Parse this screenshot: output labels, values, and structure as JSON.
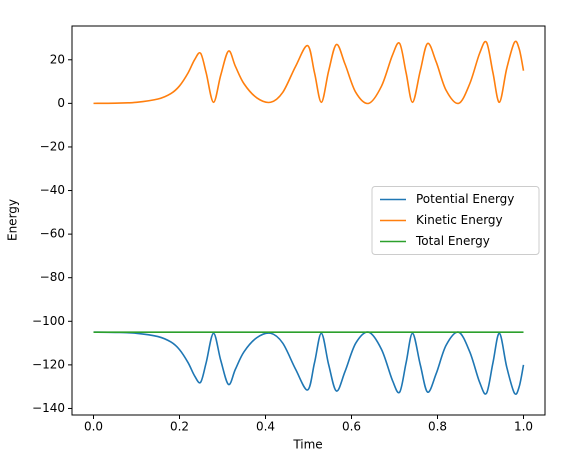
{
  "chart_data": {
    "type": "line",
    "xlabel": "Time",
    "ylabel": "Energy",
    "xlim": [
      -0.05,
      1.05
    ],
    "ylim": [
      -143,
      35.5
    ],
    "xticks": [
      {
        "value": 0,
        "label": "0.0"
      },
      0.2,
      0.4,
      0.6,
      0.8,
      {
        "value": 1,
        "label": "1.0"
      }
    ],
    "yticks": [
      {
        "value": -140,
        "label": "−140"
      },
      {
        "value": -120,
        "label": "−120"
      },
      {
        "value": -100,
        "label": "−100"
      },
      {
        "value": -80,
        "label": "−80"
      },
      {
        "value": -60,
        "label": "−60"
      },
      {
        "value": -40,
        "label": "−40"
      },
      {
        "value": -20,
        "label": "−20"
      },
      0,
      20
    ],
    "legend": "center right",
    "x": [
      0,
      0.05,
      0.1,
      0.15,
      0.18,
      0.2,
      0.22,
      0.235,
      0.249,
      0.262,
      0.279,
      0.296,
      0.314,
      0.33,
      0.35,
      0.38,
      0.412,
      0.44,
      0.47,
      0.498,
      0.514,
      0.53,
      0.547,
      0.565,
      0.585,
      0.61,
      0.64,
      0.67,
      0.695,
      0.712,
      0.727,
      0.742,
      0.76,
      0.777,
      0.797,
      0.82,
      0.849,
      0.875,
      0.898,
      0.914,
      0.929,
      0.944,
      0.961,
      0.979,
      0.99,
      1.0
    ],
    "series": [
      {
        "name": "Potential Energy",
        "color": "#1f77b4",
        "values": [
          -105,
          -105.1,
          -105.5,
          -107,
          -109.5,
          -113,
          -119,
          -125,
          -128,
          -119,
          -105.5,
          -118,
          -129,
          -122,
          -114,
          -107.5,
          -105.5,
          -110,
          -122,
          -131.5,
          -119,
          -105.5,
          -120,
          -132,
          -123,
          -110,
          -105,
          -113,
          -127,
          -132.5,
          -119,
          -105.5,
          -120,
          -132.5,
          -124,
          -111,
          -105,
          -114,
          -128,
          -133,
          -119,
          -105.5,
          -121,
          -133,
          -130,
          -120
        ]
      },
      {
        "name": "Kinetic Energy",
        "color": "#ff7f0e",
        "values": [
          0,
          0.1,
          0.5,
          2,
          4.5,
          8,
          14,
          20,
          23,
          14,
          0.5,
          13,
          24,
          17,
          9,
          2.5,
          0.5,
          5,
          17,
          26.5,
          14,
          0.5,
          15,
          27,
          18,
          5,
          0,
          8,
          22,
          27.5,
          14,
          0.5,
          15,
          27.5,
          19,
          6,
          0,
          9,
          23,
          28,
          14,
          0.5,
          16,
          28,
          25,
          15
        ]
      },
      {
        "name": "Total Energy",
        "color": "#2ca02c",
        "values": [
          -105,
          -105,
          -105,
          -105,
          -105,
          -105,
          -105,
          -105,
          -105,
          -105,
          -105,
          -105,
          -105,
          -105,
          -105,
          -105,
          -105,
          -105,
          -105,
          -105,
          -105,
          -105,
          -105,
          -105,
          -105,
          -105,
          -105,
          -105,
          -105,
          -105,
          -105,
          -105,
          -105,
          -105,
          -105,
          -105,
          -105,
          -105,
          -105,
          -105,
          -105,
          -105,
          -105,
          -105,
          -105,
          -105
        ]
      }
    ]
  }
}
